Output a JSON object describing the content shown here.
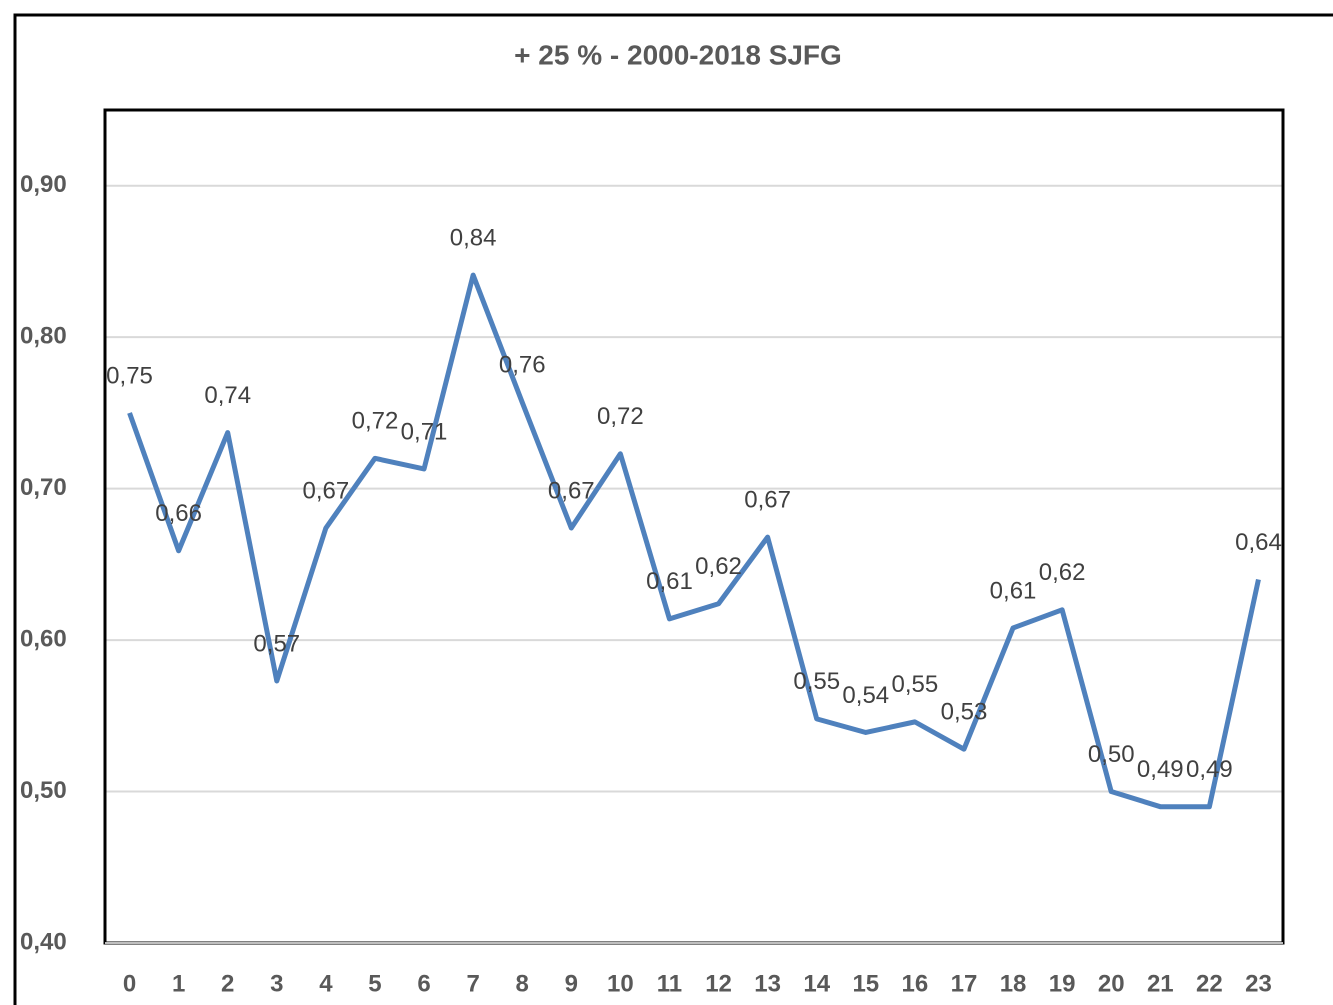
{
  "chart_data": {
    "type": "line",
    "title": "+ 25 % - 2000-2018 SJFG",
    "categories": [
      "0",
      "1",
      "2",
      "3",
      "4",
      "5",
      "6",
      "7",
      "8",
      "9",
      "10",
      "11",
      "12",
      "13",
      "14",
      "15",
      "16",
      "17",
      "18",
      "19",
      "20",
      "21",
      "22",
      "23"
    ],
    "series": [
      {
        "name": "+ 25 %",
        "color": "#4f81bd",
        "values": [
          0.75,
          0.659,
          0.737,
          0.573,
          0.674,
          0.72,
          0.713,
          0.841,
          0.757,
          0.674,
          0.723,
          0.614,
          0.624,
          0.668,
          0.548,
          0.539,
          0.546,
          0.528,
          0.608,
          0.62,
          0.5,
          0.49,
          0.49,
          0.64
        ],
        "value_labels": [
          "0,75",
          "0,66",
          "0,74",
          "0,57",
          "0,67",
          "0,72",
          "0,71",
          "0,84",
          "0,76",
          "0,67",
          "0,72",
          "0,61",
          "0,62",
          "0,67",
          "0,55",
          "0,54",
          "0,55",
          "0,53",
          "0,61",
          "0,62",
          "0,50",
          "0,49",
          "0,49",
          "0,64"
        ]
      }
    ],
    "ylim": [
      0.4,
      0.95
    ],
    "yticks": [
      {
        "value": 0.4,
        "label": "0,40"
      },
      {
        "value": 0.5,
        "label": "0,50"
      },
      {
        "value": 0.6,
        "label": "0,60"
      },
      {
        "value": 0.7,
        "label": "0,70"
      },
      {
        "value": 0.8,
        "label": "0,80"
      },
      {
        "value": 0.9,
        "label": "0,90"
      }
    ],
    "grid": true
  }
}
